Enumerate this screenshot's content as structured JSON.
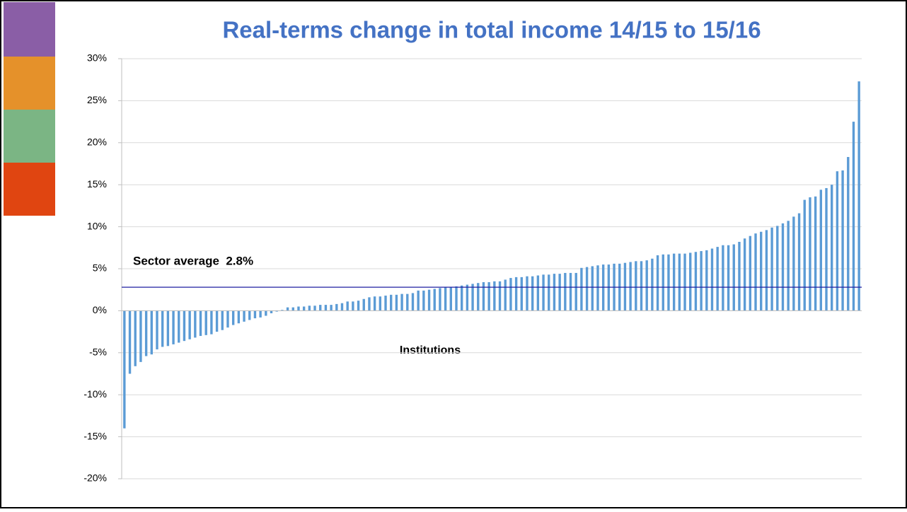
{
  "chart_data": {
    "type": "bar",
    "title": "Real-terms change in total income 14/15 to 15/16",
    "x_label": "Institutions",
    "color": "#5b9bd5",
    "values": [
      -14,
      -7.5,
      -6.6,
      -6.1,
      -5.4,
      -5.2,
      -4.6,
      -4.3,
      -4.2,
      -4.0,
      -3.8,
      -3.6,
      -3.4,
      -3.2,
      -3.0,
      -2.9,
      -2.8,
      -2.5,
      -2.3,
      -2.0,
      -1.7,
      -1.5,
      -1.3,
      -1.1,
      -0.9,
      -0.8,
      -0.6,
      -0.3,
      -0.1,
      0.1,
      0.4,
      0.4,
      0.5,
      0.5,
      0.6,
      0.6,
      0.7,
      0.7,
      0.7,
      0.8,
      0.9,
      1.1,
      1.1,
      1.2,
      1.4,
      1.6,
      1.7,
      1.7,
      1.8,
      1.9,
      1.9,
      2.0,
      2.0,
      2.1,
      2.4,
      2.4,
      2.5,
      2.6,
      2.7,
      2.8,
      2.8,
      2.9,
      3.0,
      3.1,
      3.2,
      3.3,
      3.4,
      3.4,
      3.5,
      3.5,
      3.7,
      3.9,
      4.0,
      4.0,
      4.1,
      4.1,
      4.2,
      4.3,
      4.3,
      4.4,
      4.4,
      4.5,
      4.5,
      4.5,
      5.1,
      5.2,
      5.3,
      5.4,
      5.5,
      5.5,
      5.6,
      5.6,
      5.7,
      5.8,
      5.9,
      5.9,
      6.0,
      6.2,
      6.6,
      6.7,
      6.7,
      6.8,
      6.8,
      6.8,
      6.9,
      7.0,
      7.1,
      7.2,
      7.4,
      7.6,
      7.8,
      7.8,
      7.9,
      8.2,
      8.6,
      8.9,
      9.2,
      9.4,
      9.6,
      9.9,
      10.1,
      10.4,
      10.7,
      11.2,
      11.6,
      13.2,
      13.5,
      13.6,
      14.4,
      14.6,
      15.0,
      16.6,
      16.7,
      18.3,
      22.5,
      27.3
    ],
    "ylim": [
      -20,
      30
    ],
    "yticks": [
      {
        "value": -20,
        "label": "-20%"
      },
      {
        "value": -15,
        "label": "-15%"
      },
      {
        "value": -10,
        "label": "-10%"
      },
      {
        "value": -5,
        "label": "-5%"
      },
      {
        "value": 0,
        "label": "0%"
      },
      {
        "value": 5,
        "label": "5%"
      },
      {
        "value": 10,
        "label": "10%"
      },
      {
        "value": 15,
        "label": "15%"
      },
      {
        "value": 20,
        "label": "20%"
      },
      {
        "value": 25,
        "label": "25%"
      },
      {
        "value": 30,
        "label": "30%"
      }
    ],
    "grid": true,
    "reference_line": {
      "label": "Sector average  2.8%",
      "value": 2.8,
      "color": "#1f1fa0"
    }
  }
}
